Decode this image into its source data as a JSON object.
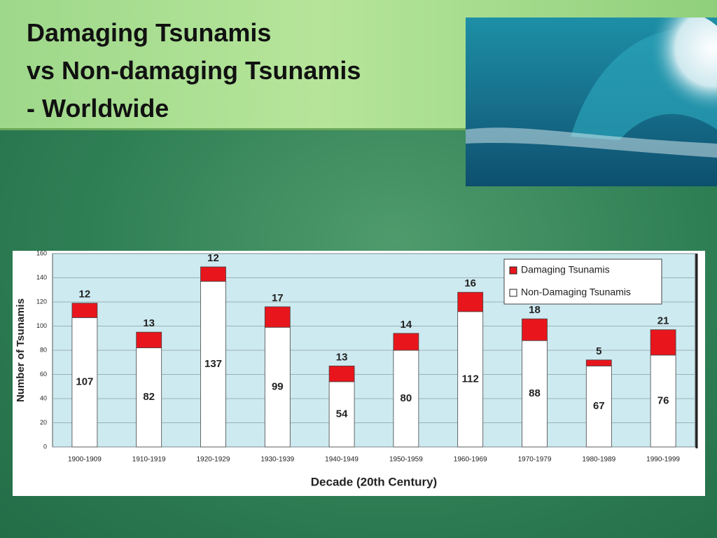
{
  "title": [
    "Damaging Tsunamis",
    "vs Non-damaging Tsunamis",
    "- Worldwide"
  ],
  "chart_data": {
    "type": "stacked-bar",
    "x_label": "Decade (20th Century)",
    "y_label": "Number of Tsunamis",
    "categories": [
      "1900-1909",
      "1910-1919",
      "1920-1929",
      "1930-1939",
      "1940-1949",
      "1950-1959",
      "1960-1969",
      "1970-1979",
      "1980-1989",
      "1990-1999"
    ],
    "series": [
      {
        "name": "Non-Damaging Tsunamis",
        "color": "#ffffff",
        "values": [
          107,
          82,
          137,
          99,
          54,
          80,
          112,
          88,
          67,
          76
        ]
      },
      {
        "name": "Damaging Tsunamis",
        "color": "#e8161c",
        "values": [
          12,
          13,
          12,
          17,
          13,
          14,
          16,
          18,
          5,
          21
        ]
      }
    ],
    "ylim": [
      0,
      160
    ],
    "yticks": [
      0,
      20,
      40,
      60,
      80,
      100,
      120,
      140,
      160
    ],
    "grid": true,
    "legend": "top-right",
    "plot_background": "#cdeaf0"
  }
}
